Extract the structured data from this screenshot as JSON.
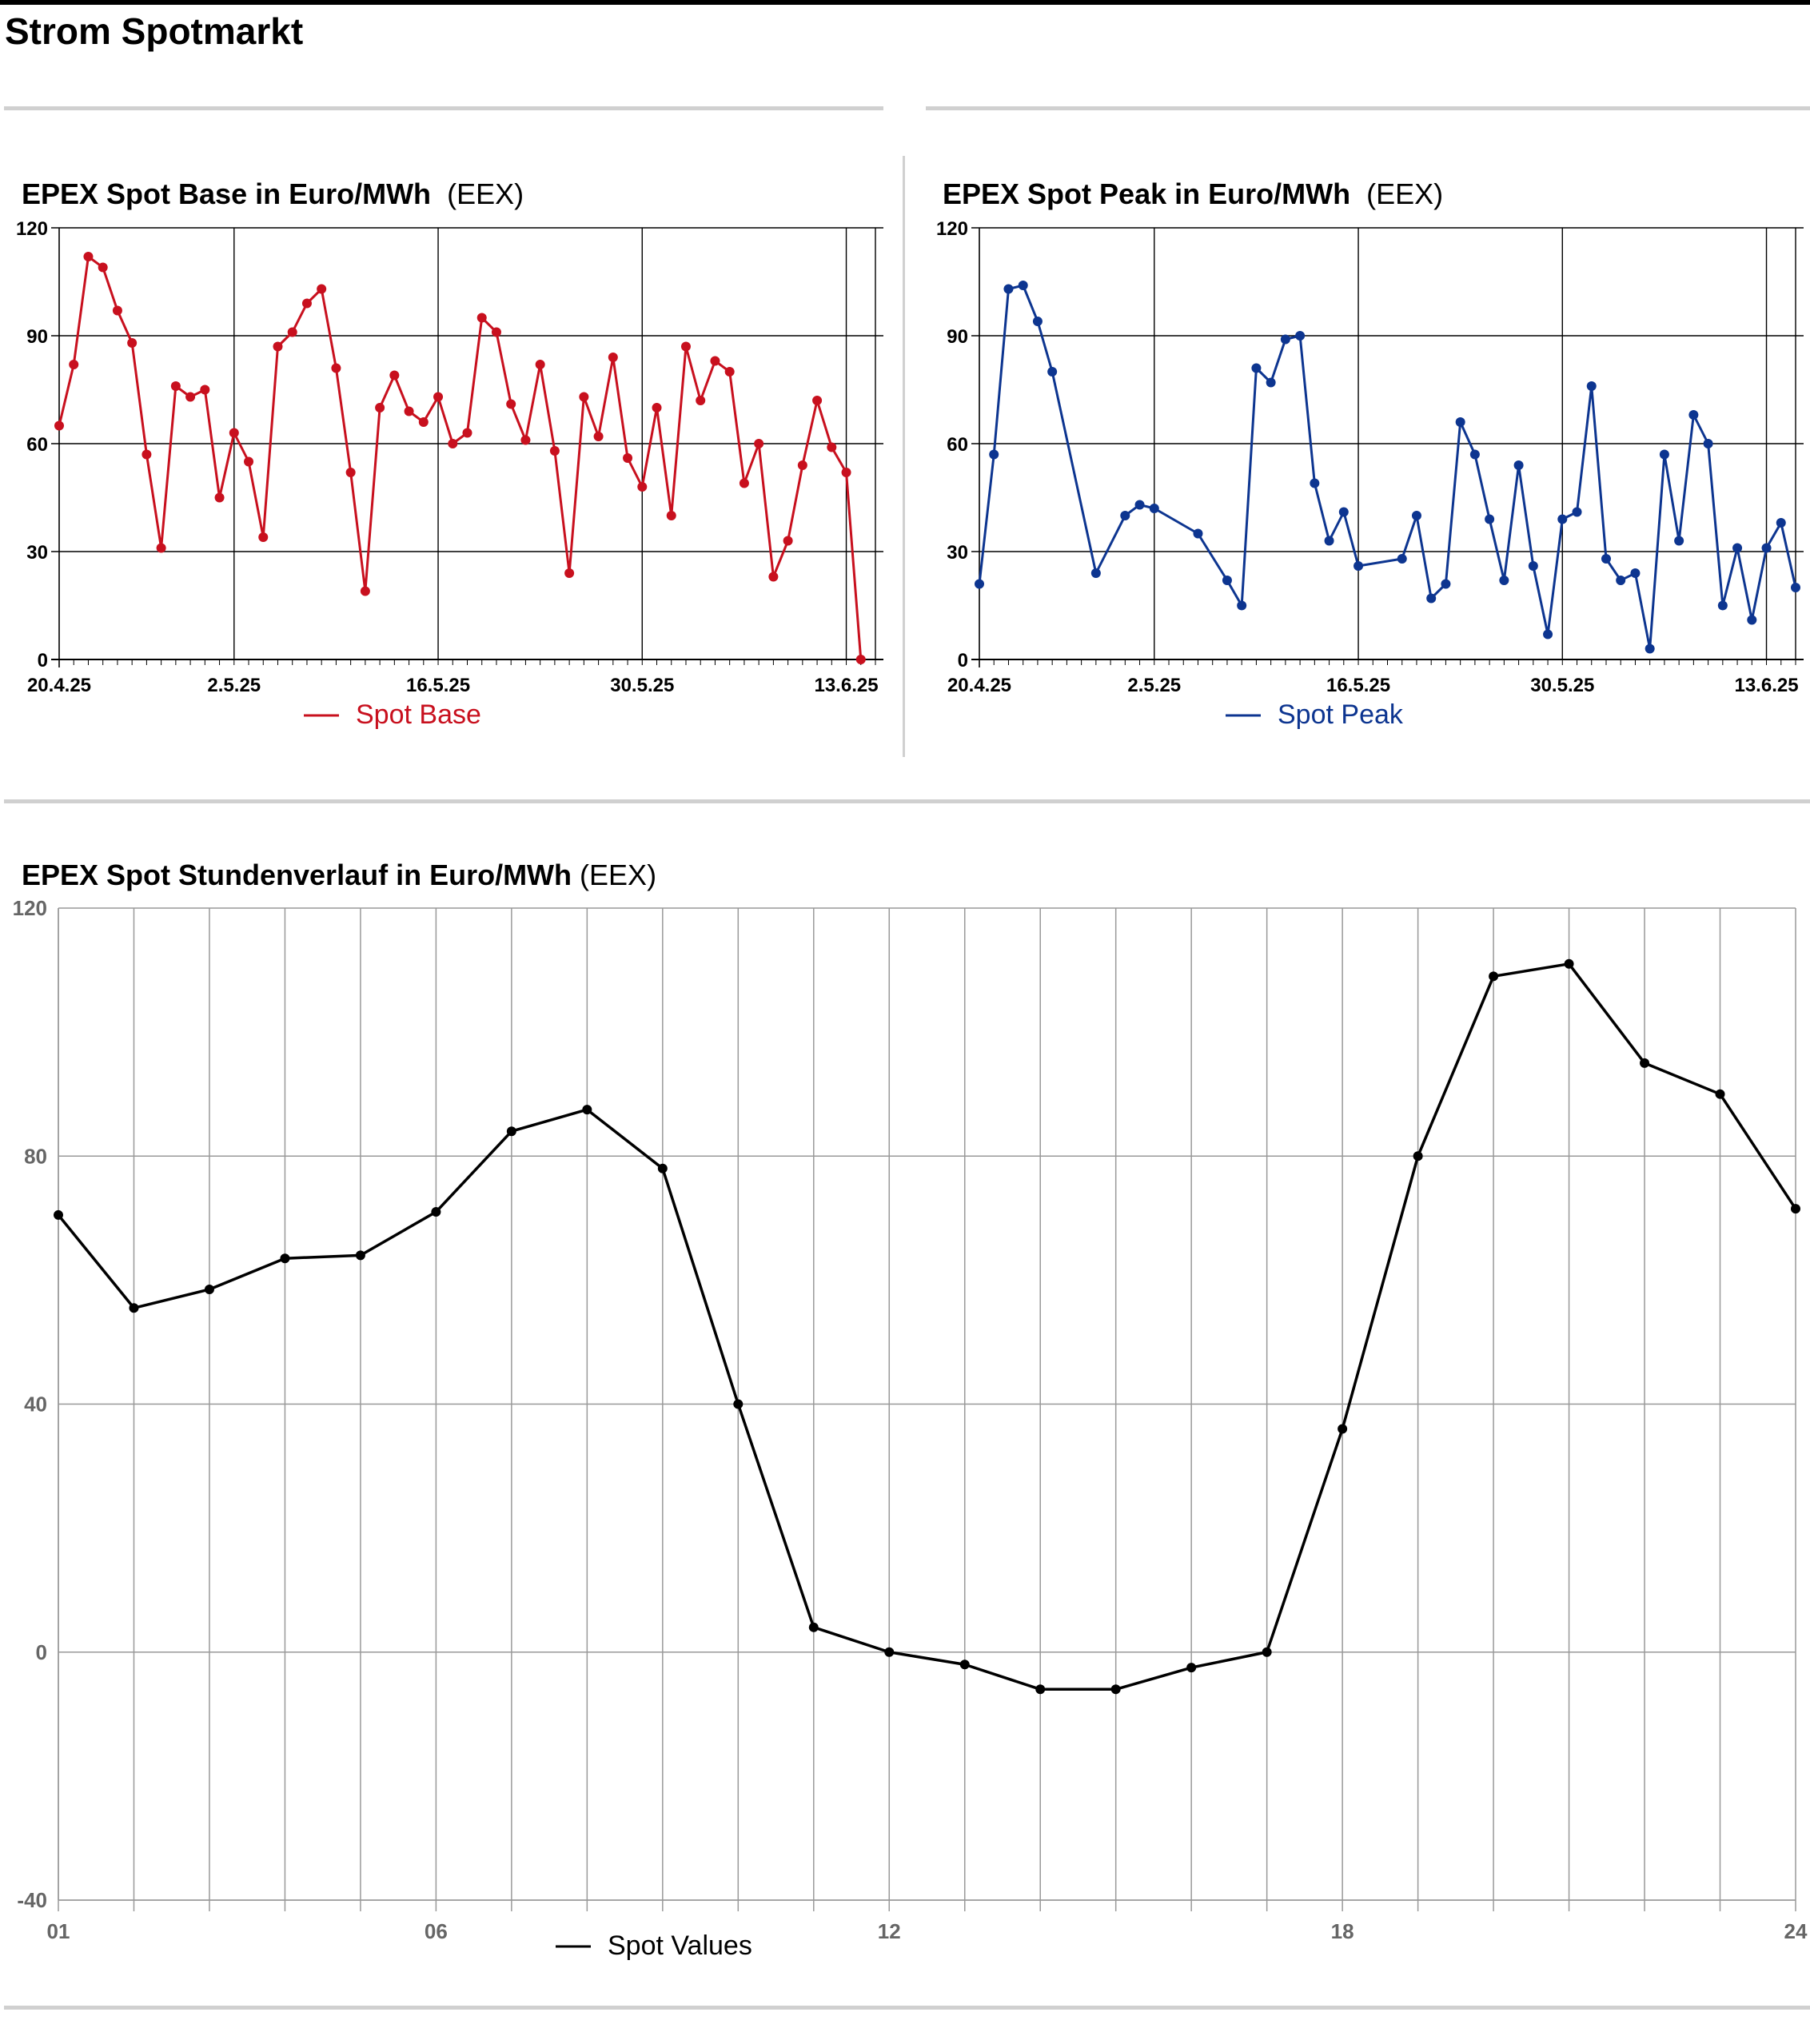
{
  "page": {
    "title": "Strom Spotmarkt"
  },
  "charts": {
    "base": {
      "title_bold": "EPEX Spot Base in Euro/MWh",
      "title_source": "(EEX)"
    },
    "peak": {
      "title_bold": "EPEX Spot Peak in Euro/MWh",
      "title_source": "(EEX)"
    },
    "hourly": {
      "title_bold": "EPEX Spot Stundenverlauf in Euro/MWh",
      "title_source": "(EEX)"
    }
  },
  "chart_data": [
    {
      "id": "base",
      "type": "line",
      "title": "EPEX Spot Base in Euro/MWh (EEX)",
      "color": "#c8101e",
      "x_ticks": [
        "20.4.25",
        "2.5.25",
        "16.5.25",
        "30.5.25",
        "13.6.25"
      ],
      "ylim": [
        0,
        120
      ],
      "y_ticks": [
        0,
        30,
        60,
        90,
        120
      ],
      "grid": true,
      "legend_position": "bottom-center",
      "series": [
        {
          "name": "Spot Base",
          "x": [
            "20.4.25",
            "21.4.25",
            "22.4.25",
            "23.4.25",
            "24.4.25",
            "25.4.25",
            "26.4.25",
            "27.4.25",
            "28.4.25",
            "29.4.25",
            "30.4.25",
            "1.5.25",
            "2.5.25",
            "3.5.25",
            "4.5.25",
            "5.5.25",
            "6.5.25",
            "7.5.25",
            "8.5.25",
            "9.5.25",
            "10.5.25",
            "11.5.25",
            "12.5.25",
            "13.5.25",
            "14.5.25",
            "15.5.25",
            "16.5.25",
            "17.5.25",
            "18.5.25",
            "19.5.25",
            "20.5.25",
            "21.5.25",
            "22.5.25",
            "23.5.25",
            "24.5.25",
            "25.5.25",
            "26.5.25",
            "27.5.25",
            "28.5.25",
            "29.5.25",
            "30.5.25",
            "31.5.25",
            "1.6.25",
            "2.6.25",
            "3.6.25",
            "4.6.25",
            "5.6.25",
            "6.6.25",
            "7.6.25",
            "8.6.25",
            "9.6.25",
            "10.6.25",
            "11.6.25",
            "12.6.25",
            "13.6.25",
            "14.6.25"
          ],
          "values": [
            65,
            82,
            112,
            109,
            97,
            88,
            57,
            31,
            76,
            73,
            75,
            45,
            63,
            55,
            34,
            87,
            91,
            99,
            103,
            81,
            52,
            19,
            70,
            79,
            69,
            66,
            73,
            60,
            63,
            95,
            91,
            71,
            61,
            82,
            58,
            24,
            73,
            62,
            84,
            56,
            48,
            70,
            40,
            87,
            72,
            83,
            80,
            49,
            60,
            23,
            33,
            54,
            72,
            59,
            52,
            0
          ]
        }
      ]
    },
    {
      "id": "peak",
      "type": "line",
      "title": "EPEX Spot Peak in Euro/MWh (EEX)",
      "color": "#0d3590",
      "x_ticks": [
        "20.4.25",
        "2.5.25",
        "16.5.25",
        "30.5.25",
        "13.6.25"
      ],
      "ylim": [
        0,
        120
      ],
      "y_ticks": [
        0,
        30,
        60,
        90,
        120
      ],
      "grid": true,
      "legend_position": "bottom-center",
      "series": [
        {
          "name": "Spot Peak",
          "x": [
            "20.4.25",
            "21.4.25",
            "22.4.25",
            "23.4.25",
            "24.4.25",
            "25.4.25",
            "28.4.25",
            "30.4.25",
            "1.5.25",
            "2.5.25",
            "5.5.25",
            "7.5.25",
            "8.5.25",
            "9.5.25",
            "10.5.25",
            "11.5.25",
            "12.5.25",
            "13.5.25",
            "14.5.25",
            "15.5.25",
            "16.5.25",
            "19.5.25",
            "20.5.25",
            "21.5.25",
            "22.5.25",
            "23.5.25",
            "24.5.25",
            "25.5.25",
            "26.5.25",
            "27.5.25",
            "28.5.25",
            "29.5.25",
            "30.5.25",
            "31.5.25",
            "1.6.25",
            "2.6.25",
            "3.6.25",
            "4.6.25",
            "5.6.25",
            "6.6.25",
            "7.6.25",
            "8.6.25",
            "9.6.25",
            "10.6.25",
            "11.6.25",
            "12.6.25",
            "13.6.25",
            "14.6.25",
            "15.6.25"
          ],
          "values": [
            21,
            57,
            103,
            104,
            94,
            80,
            24,
            40,
            43,
            42,
            35,
            22,
            15,
            81,
            77,
            89,
            90,
            49,
            33,
            41,
            26,
            28,
            40,
            17,
            21,
            66,
            57,
            39,
            22,
            54,
            26,
            7,
            39,
            41,
            76,
            28,
            22,
            24,
            3,
            57,
            33,
            68,
            60,
            15,
            31,
            11,
            31,
            38,
            20
          ]
        }
      ]
    },
    {
      "id": "hourly",
      "type": "line",
      "title": "EPEX Spot Stundenverlauf in Euro/MWh (EEX)",
      "color": "#000000",
      "x_ticks": [
        "01",
        "06",
        "12",
        "18",
        "24"
      ],
      "ylim": [
        -40,
        120
      ],
      "y_ticks": [
        -40,
        0,
        40,
        80,
        120
      ],
      "grid": true,
      "legend_position": "bottom-center",
      "series": [
        {
          "name": "Spot Values",
          "x": [
            1,
            2,
            3,
            4,
            5,
            6,
            7,
            8,
            9,
            10,
            11,
            12,
            13,
            14,
            15,
            16,
            17,
            18,
            19,
            20,
            21,
            22,
            23,
            24
          ],
          "values": [
            70.5,
            55.5,
            58.5,
            63.5,
            64,
            71,
            84,
            87.5,
            78,
            40,
            4,
            0,
            -2,
            -6,
            -6,
            -2.5,
            0,
            36,
            80,
            109,
            111,
            95,
            90,
            71.5
          ]
        }
      ]
    }
  ]
}
